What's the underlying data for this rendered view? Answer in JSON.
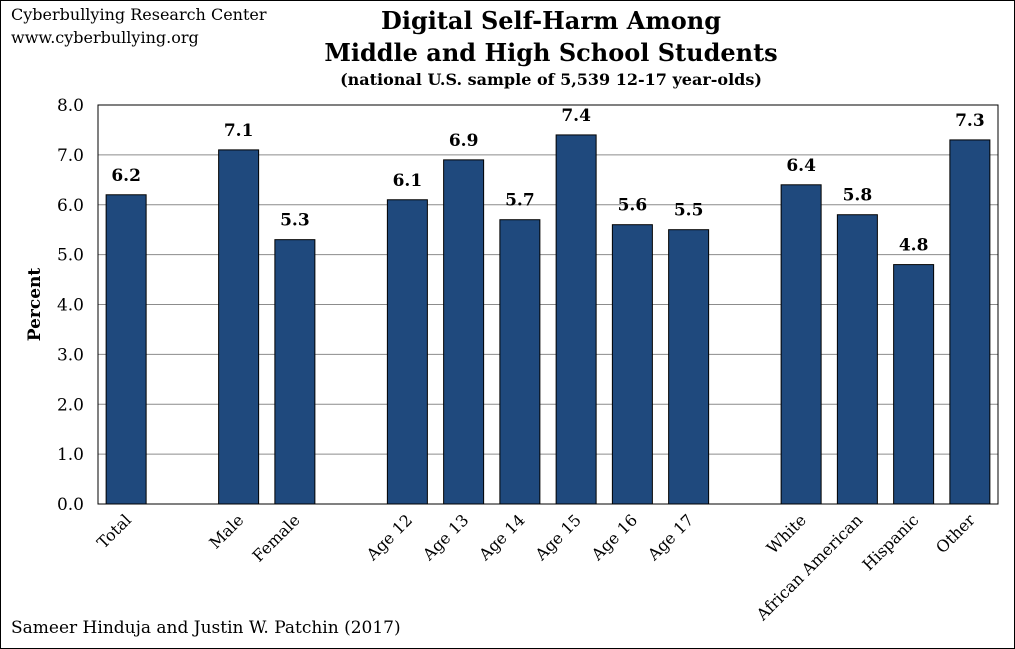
{
  "source": {
    "org": "Cyberbullying Research Center",
    "url": "www.cyberbullying.org"
  },
  "credit": "Sameer Hinduja and Justin W. Patchin (2017)",
  "colors": {
    "bar": "#1F497D",
    "grid": "#8C8C8C",
    "axis": "#000000"
  },
  "chart_data": {
    "type": "bar",
    "title": "Digital Self-Harm Among Middle and High School Students",
    "title_lines": [
      "Digital Self-Harm Among",
      "Middle and High School Students"
    ],
    "subtitle": "(national U.S. sample of 5,539 12-17 year-olds)",
    "xlabel": "",
    "ylabel": "Percent",
    "ylim": [
      0,
      8
    ],
    "yticks": [
      "0.0",
      "1.0",
      "2.0",
      "3.0",
      "4.0",
      "5.0",
      "6.0",
      "7.0",
      "8.0"
    ],
    "grid": true,
    "categories": [
      "Total",
      "",
      "Male",
      "Female",
      "",
      "Age 12",
      "Age 13",
      "Age 14",
      "Age 15",
      "Age 16",
      "Age 17",
      "",
      "White",
      "African American",
      "Hispanic",
      "Other"
    ],
    "values": [
      6.2,
      null,
      7.1,
      5.3,
      null,
      6.1,
      6.9,
      5.7,
      7.4,
      5.6,
      5.5,
      null,
      6.4,
      5.8,
      4.8,
      7.3
    ],
    "value_labels": [
      "6.2",
      "",
      "7.1",
      "5.3",
      "",
      "6.1",
      "6.9",
      "5.7",
      "7.4",
      "5.6",
      "5.5",
      "",
      "6.4",
      "5.8",
      "4.8",
      "7.3"
    ]
  }
}
